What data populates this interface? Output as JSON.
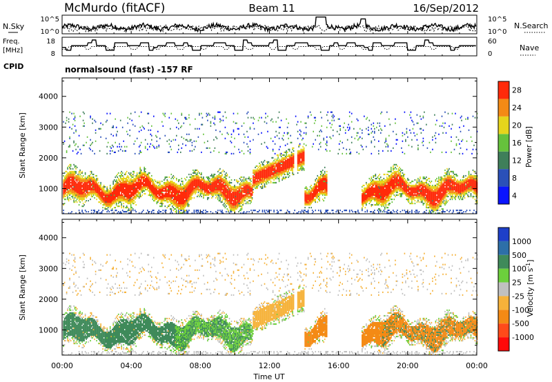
{
  "header": {
    "station": "McMurdo (fitACF)",
    "beam": "Beam 11",
    "date": "16/Sep/2012"
  },
  "top_panels": {
    "nsky_label": "N.Sky",
    "nsky_ticks": [
      "10^5",
      "10^0"
    ],
    "nsearch_label": "N.Search",
    "freq_label_1": "Freq.",
    "freq_label_2": "[MHz]",
    "freq_ticks": [
      "18",
      "8"
    ],
    "nave_ticks": [
      "60",
      "0"
    ],
    "nave_label": "Nave",
    "cpid_label": "CPID",
    "cpid_text": "normalsound (fast) -157 RF"
  },
  "chart_data": [
    {
      "type": "heatmap",
      "ylabel": "Slant Range [km]",
      "ylim": [
        180,
        4600
      ],
      "yticks": [
        "1000",
        "2000",
        "3000",
        "4000"
      ],
      "ytick_values": [
        1000,
        2000,
        3000,
        4000
      ],
      "xlim": [
        0,
        24
      ],
      "x_tick_hours": [
        0,
        4,
        8,
        12,
        16,
        20,
        24
      ],
      "colorbar": {
        "label": "Power [dB]",
        "ticks": [
          "4",
          "8",
          "12",
          "16",
          "20",
          "24",
          "28"
        ],
        "colors": [
          "#0a14ff",
          "#2a50b8",
          "#3f7f5a",
          "#66c23c",
          "#e6d51c",
          "#f48a15",
          "#ff2a0a"
        ]
      }
    },
    {
      "type": "heatmap",
      "ylabel": "Slant Range [km]",
      "ylim": [
        180,
        4600
      ],
      "yticks": [
        "1000",
        "2000",
        "3000",
        "4000"
      ],
      "ytick_values": [
        1000,
        2000,
        3000,
        4000
      ],
      "xlim": [
        0,
        24
      ],
      "xlabel": "Time UT",
      "xticks": [
        "00:00",
        "04:00",
        "08:00",
        "12:00",
        "16:00",
        "20:00",
        "00:00"
      ],
      "colorbar": {
        "label": "Velocity [m s",
        "label_sup": "-1",
        "label_end": "]",
        "ticks": [
          "1000",
          "500",
          "100",
          "25",
          "-25",
          "-100",
          "-500",
          "-1000"
        ],
        "colors": [
          "#1e3fc8",
          "#2d6fa8",
          "#3f8a5a",
          "#6ccf3c",
          "#c0c0c0",
          "#f6b23a",
          "#f48a15",
          "#ff4a1a",
          "#ff0a0a"
        ]
      }
    }
  ]
}
